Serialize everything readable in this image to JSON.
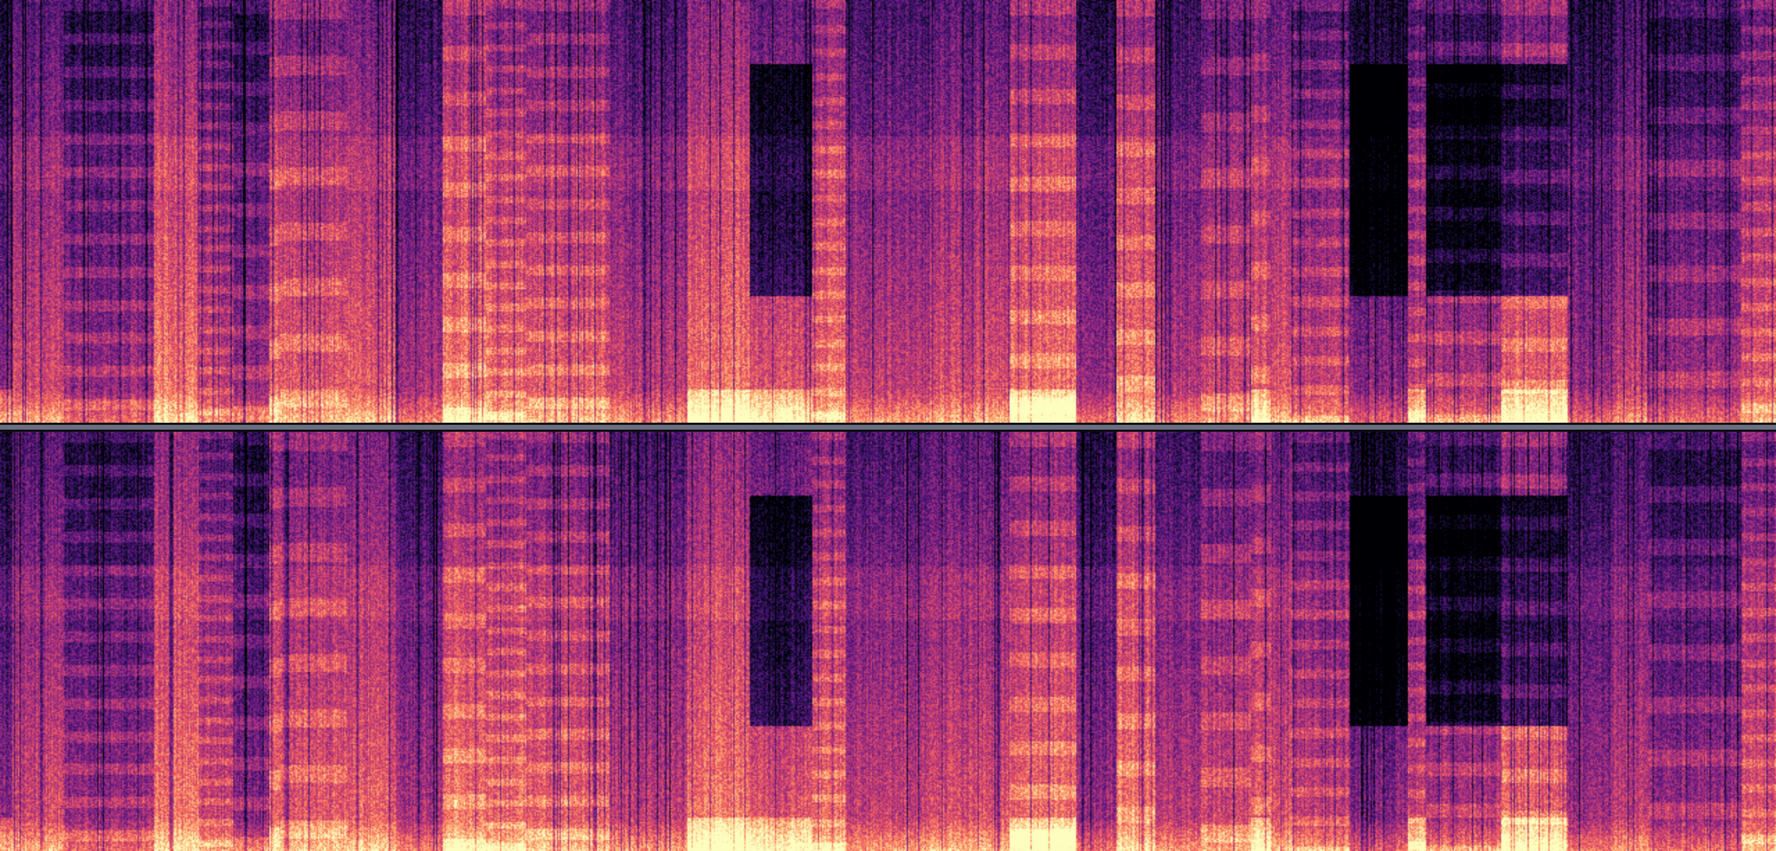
{
  "spectrogram": {
    "channels": 2,
    "colormap": [
      "#000004",
      "#1c1044",
      "#4f127b",
      "#812581",
      "#b5367a",
      "#e55064",
      "#fb8761",
      "#fec287",
      "#fcfdbf"
    ],
    "divider_color": "#6b6e80"
  }
}
